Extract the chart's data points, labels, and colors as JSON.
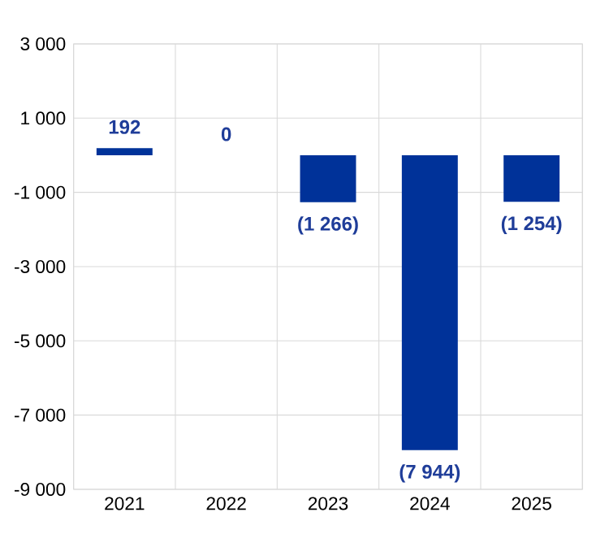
{
  "chart_data": {
    "type": "bar",
    "categories": [
      "2021",
      "2022",
      "2023",
      "2024",
      "2025"
    ],
    "values": [
      192,
      0,
      -1266,
      -7944,
      -1254
    ],
    "value_labels": [
      "192",
      "0",
      "(1 266)",
      "(7 944)",
      "(1 254)"
    ],
    "color": "#003299",
    "ylim": [
      -9000,
      3000
    ],
    "yticks": [
      {
        "value": 3000,
        "label": "3 000"
      },
      {
        "value": 1000,
        "label": "1 000"
      },
      {
        "value": -1000,
        "label": "-1 000"
      },
      {
        "value": -3000,
        "label": "-3 000"
      },
      {
        "value": -5000,
        "label": "-5 000"
      },
      {
        "value": -7000,
        "label": "-7 000"
      },
      {
        "value": -9000,
        "label": "-9 000"
      }
    ],
    "grid": true
  }
}
